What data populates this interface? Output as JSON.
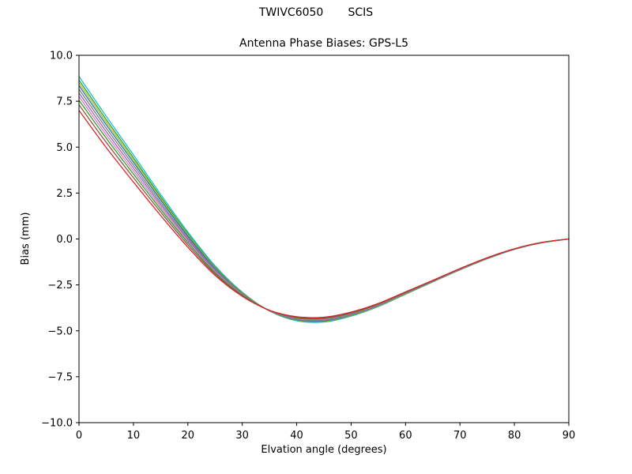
{
  "chart_data": {
    "type": "line",
    "title": "TWIVC6050       SCIS",
    "subtitle": "Antenna Phase Biases: GPS-L5",
    "xlabel": "Elvation angle (degrees)",
    "ylabel": "Bias (mm)",
    "xlim": [
      0,
      90
    ],
    "ylim": [
      -10,
      10
    ],
    "xticks": [
      0,
      10,
      20,
      30,
      40,
      50,
      60,
      70,
      80,
      90
    ],
    "xtick_labels": [
      "0",
      "10",
      "20",
      "30",
      "40",
      "50",
      "60",
      "70",
      "80",
      "90"
    ],
    "yticks": [
      -10,
      -7.5,
      -5,
      -2.5,
      0,
      2.5,
      5,
      7.5,
      10
    ],
    "ytick_labels": [
      "−10.0",
      "−7.5",
      "−5.0",
      "−2.5",
      "0.0",
      "2.5",
      "5.0",
      "7.5",
      "10.0"
    ],
    "grid": false,
    "legend": "none",
    "background": "#ffffff",
    "axis_color": "#000000",
    "x": [
      0,
      5,
      10,
      15,
      20,
      25,
      30,
      35,
      40,
      45,
      50,
      55,
      60,
      65,
      70,
      75,
      80,
      85,
      90
    ],
    "series": [
      {
        "name": "line-1",
        "color": "#17becf",
        "values": [
          8.85,
          6.68,
          4.58,
          2.43,
          0.38,
          -1.46,
          -2.9,
          -3.92,
          -4.45,
          -4.52,
          -4.2,
          -3.68,
          -3.01,
          -2.34,
          -1.68,
          -1.08,
          -0.57,
          -0.21,
          0.0
        ]
      },
      {
        "name": "line-2",
        "color": "#2ca02c",
        "values": [
          8.65,
          6.5,
          4.42,
          2.3,
          0.29,
          -1.52,
          -2.92,
          -3.91,
          -4.43,
          -4.49,
          -4.18,
          -3.66,
          -3.0,
          -2.33,
          -1.68,
          -1.07,
          -0.56,
          -0.21,
          0.0
        ]
      },
      {
        "name": "line-3",
        "color": "#bcbd22",
        "values": [
          8.5,
          6.36,
          4.3,
          2.21,
          0.23,
          -1.56,
          -2.94,
          -3.91,
          -4.41,
          -4.47,
          -4.16,
          -3.65,
          -2.99,
          -2.33,
          -1.67,
          -1.07,
          -0.56,
          -0.21,
          0.0
        ]
      },
      {
        "name": "line-4",
        "color": "#1f77b4",
        "values": [
          8.35,
          6.22,
          4.18,
          2.12,
          0.16,
          -1.6,
          -2.96,
          -3.91,
          -4.39,
          -4.45,
          -4.14,
          -3.63,
          -2.97,
          -2.32,
          -1.66,
          -1.06,
          -0.56,
          -0.2,
          0.0
        ]
      },
      {
        "name": "line-5",
        "color": "#7f7f7f",
        "values": [
          8.15,
          6.04,
          4.02,
          1.99,
          0.07,
          -1.66,
          -2.98,
          -3.9,
          -4.37,
          -4.42,
          -4.12,
          -3.61,
          -2.96,
          -2.31,
          -1.66,
          -1.05,
          -0.55,
          -0.2,
          0.0
        ]
      },
      {
        "name": "line-6",
        "color": "#9467bd",
        "values": [
          7.95,
          5.85,
          3.86,
          1.87,
          -0.02,
          -1.71,
          -3.01,
          -3.9,
          -4.34,
          -4.39,
          -4.09,
          -3.6,
          -2.95,
          -2.3,
          -1.65,
          -1.05,
          -0.55,
          -0.2,
          0.0
        ]
      },
      {
        "name": "line-7",
        "color": "#e377c2",
        "values": [
          7.75,
          5.67,
          3.7,
          1.75,
          -0.11,
          -1.77,
          -3.03,
          -3.9,
          -4.32,
          -4.37,
          -4.07,
          -3.58,
          -2.93,
          -2.29,
          -1.64,
          -1.04,
          -0.55,
          -0.2,
          0.0
        ]
      },
      {
        "name": "line-8",
        "color": "#2ca02c",
        "values": [
          7.55,
          5.49,
          3.54,
          1.62,
          -0.2,
          -1.83,
          -3.05,
          -3.89,
          -4.3,
          -4.34,
          -4.05,
          -3.56,
          -2.92,
          -2.28,
          -1.63,
          -1.04,
          -0.54,
          -0.2,
          0.0
        ]
      },
      {
        "name": "line-9",
        "color": "#8c564b",
        "values": [
          7.3,
          5.26,
          3.34,
          1.47,
          -0.32,
          -1.9,
          -3.08,
          -3.89,
          -4.27,
          -4.3,
          -4.02,
          -3.54,
          -2.9,
          -2.27,
          -1.62,
          -1.03,
          -0.54,
          -0.19,
          0.0
        ]
      },
      {
        "name": "line-10",
        "color": "#d62728",
        "values": [
          7.0,
          4.98,
          3.1,
          1.28,
          -0.45,
          -1.98,
          -3.12,
          -3.88,
          -4.23,
          -4.26,
          -3.98,
          -3.51,
          -2.88,
          -2.25,
          -1.61,
          -1.02,
          -0.53,
          -0.19,
          0.0
        ]
      }
    ]
  }
}
